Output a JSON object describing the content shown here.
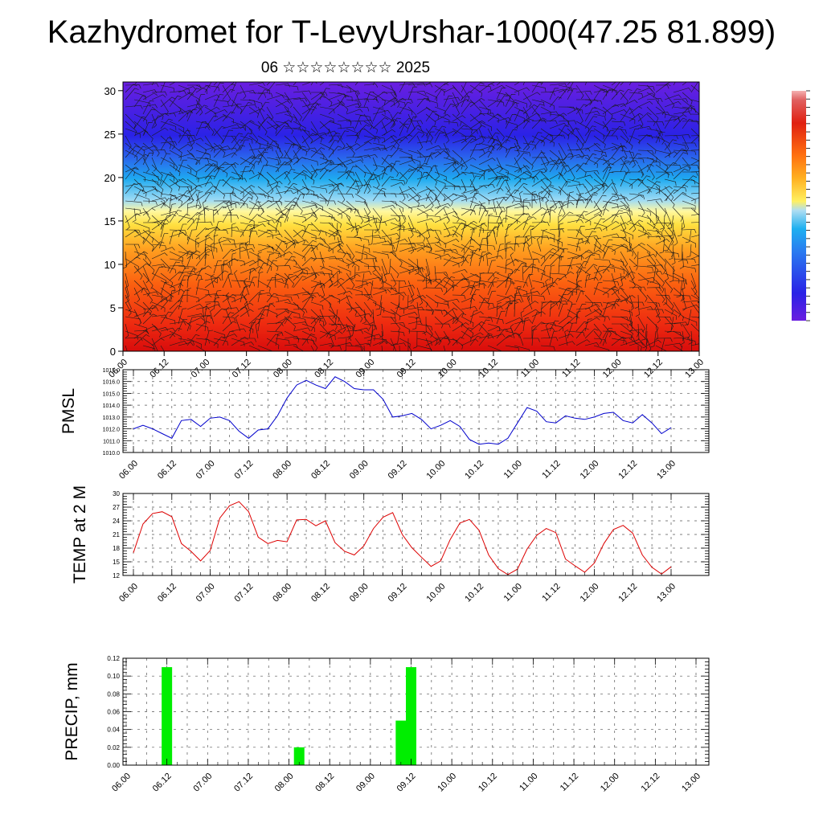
{
  "header": {
    "title": "Kazhydromet for T-LevyUrshar-1000(47.25 81.899)",
    "subtitle": "06 ☆☆☆☆☆☆☆☆ 2025"
  },
  "chart_data": [
    {
      "type": "heatmap",
      "description": "Cross-section with colored fill and wind barbs",
      "xticks": [
        "06.00",
        "06.12",
        "07.00",
        "07.12",
        "08.00",
        "08.12",
        "09.00",
        "09.12",
        "10.00",
        "10.12",
        "11.00",
        "11.12",
        "12.00",
        "12.12",
        "13.00"
      ],
      "yticks": [
        0,
        5,
        10,
        15,
        20,
        25,
        30
      ],
      "ylim": [
        0,
        31
      ],
      "colorbar_colors": [
        "#6a1fe0",
        "#3a2ee8",
        "#2a6ef0",
        "#1aa6f0",
        "#9ad6f0",
        "#ffef40",
        "#ffc020",
        "#ff8010",
        "#f03010",
        "#d01010",
        "#f0a0a0"
      ]
    },
    {
      "type": "line",
      "ylabel": "PMSL",
      "color": "#0000cc",
      "xticks": [
        "06.00",
        "06.12",
        "07.00",
        "07.12",
        "08.00",
        "08.12",
        "09.00",
        "09.12",
        "10.00",
        "10.12",
        "11.00",
        "11.12",
        "12.00",
        "12.12",
        "13.00"
      ],
      "yticks": [
        "1010.0",
        "1011.0",
        "1012.0",
        "1013.0",
        "1014.0",
        "1015.0",
        "1016.0",
        "1017.0"
      ],
      "ylim": [
        1010,
        1017
      ],
      "values": [
        1012.0,
        1012.3,
        1012.0,
        1011.6,
        1011.2,
        1012.7,
        1012.8,
        1012.2,
        1012.9,
        1013.0,
        1012.7,
        1011.8,
        1011.2,
        1011.9,
        1012.0,
        1013.1,
        1014.6,
        1015.7,
        1016.1,
        1015.7,
        1015.4,
        1016.4,
        1016.0,
        1015.4,
        1015.3,
        1015.3,
        1014.5,
        1013.0,
        1013.1,
        1013.3,
        1012.8,
        1012.0,
        1012.3,
        1012.7,
        1012.2,
        1011.1,
        1010.7,
        1010.8,
        1010.7,
        1011.2,
        1012.5,
        1013.8,
        1013.5,
        1012.6,
        1012.5,
        1013.1,
        1012.9,
        1012.8,
        1013.0,
        1013.3,
        1013.4,
        1012.7,
        1012.5,
        1013.2,
        1012.5,
        1011.6,
        1012.1
      ],
      "x_start": 0,
      "x_step_hours": 3
    },
    {
      "type": "line",
      "ylabel": "TEMP at 2 M",
      "color": "#dd0000",
      "xticks": [
        "06.00",
        "06.12",
        "07.00",
        "07.12",
        "08.00",
        "08.12",
        "09.00",
        "09.12",
        "10.00",
        "10.12",
        "11.00",
        "11.12",
        "12.00",
        "12.12",
        "13.00"
      ],
      "yticks": [
        "12",
        "15",
        "18",
        "21",
        "24",
        "27",
        "30"
      ],
      "ylim": [
        12,
        30
      ],
      "values": [
        17.0,
        23.3,
        25.6,
        26.0,
        24.9,
        19.0,
        17.3,
        15.2,
        17.5,
        24.6,
        27.3,
        28.2,
        26.0,
        20.4,
        19.0,
        19.7,
        19.4,
        24.2,
        24.3,
        22.9,
        24.0,
        19.2,
        17.3,
        16.5,
        18.5,
        22.3,
        24.8,
        25.8,
        21.0,
        18.1,
        16.0,
        14.0,
        15.2,
        19.9,
        23.5,
        24.3,
        21.9,
        16.5,
        13.5,
        12.2,
        13.4,
        17.8,
        20.8,
        22.3,
        21.4,
        15.6,
        14.1,
        12.7,
        14.7,
        19.0,
        22.1,
        23.0,
        21.3,
        16.5,
        13.8,
        12.3,
        13.9
      ],
      "x_start": 0,
      "x_step_hours": 3
    },
    {
      "type": "bar",
      "ylabel": "PRECIP, mm",
      "color": "#00ee00",
      "xticks": [
        "06.00",
        "06.12",
        "07.00",
        "07.12",
        "08.00",
        "08.12",
        "09.00",
        "09.12",
        "10.00",
        "10.12",
        "11.00",
        "11.12",
        "12.00",
        "12.12",
        "13.00"
      ],
      "yticks": [
        "0.00",
        "0.02",
        "0.04",
        "0.06",
        "0.08",
        "0.10",
        "0.12"
      ],
      "ylim": [
        0,
        0.12
      ],
      "bars": [
        {
          "time_hours": 12,
          "value": 0.11
        },
        {
          "time_hours": 51,
          "value": 0.02
        },
        {
          "time_hours": 81,
          "value": 0.05
        },
        {
          "time_hours": 84,
          "value": 0.11
        }
      ]
    }
  ]
}
